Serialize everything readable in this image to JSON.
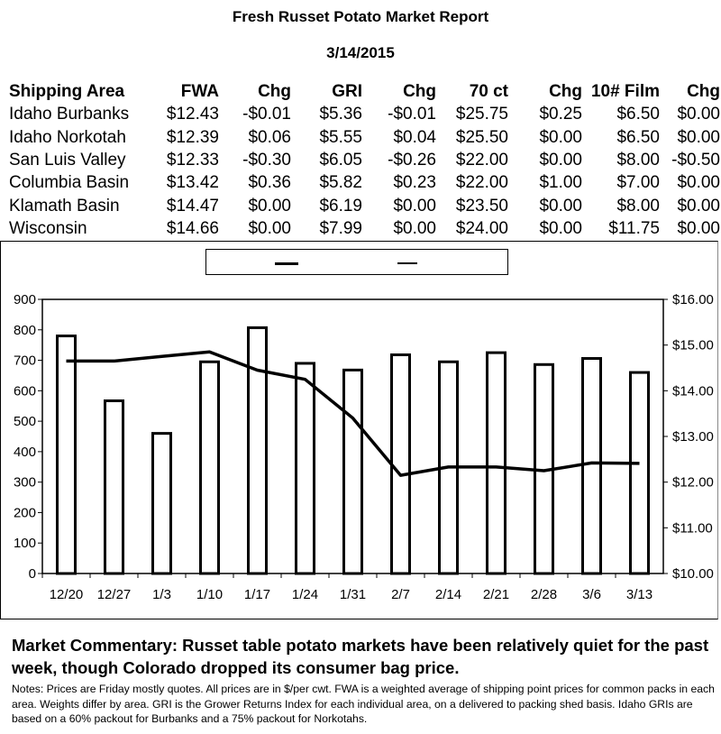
{
  "report": {
    "title": "Fresh Russet Potato Market Report",
    "date": "3/14/2015"
  },
  "table": {
    "headers": [
      "Shipping Area",
      "FWA",
      "Chg",
      "GRI",
      "Chg",
      "70 ct",
      "Chg",
      "10# Film",
      "Chg"
    ],
    "rows": [
      [
        "Idaho Burbanks",
        "$12.43",
        "-$0.01",
        "$5.36",
        "-$0.01",
        "$25.75",
        "$0.25",
        "$6.50",
        "$0.00"
      ],
      [
        "Idaho Norkotah",
        "$12.39",
        "$0.06",
        "$5.55",
        "$0.04",
        "$25.50",
        "$0.00",
        "$6.50",
        "$0.00"
      ],
      [
        "San Luis Valley",
        "$12.33",
        "-$0.30",
        "$6.05",
        "-$0.26",
        "$22.00",
        "$0.00",
        "$8.00",
        "-$0.50"
      ],
      [
        "Columbia Basin",
        "$13.42",
        "$0.36",
        "$5.82",
        "$0.23",
        "$22.00",
        "$1.00",
        "$7.00",
        "$0.00"
      ],
      [
        "Klamath Basin",
        "$14.47",
        "$0.00",
        "$6.19",
        "$0.00",
        "$23.50",
        "$0.00",
        "$8.00",
        "$0.00"
      ],
      [
        "Wisconsin",
        "$14.66",
        "$0.00",
        "$7.99",
        "$0.00",
        "$24.00",
        "$0.00",
        "$11.75",
        "$0.00"
      ]
    ]
  },
  "chart_data": {
    "type": "bar",
    "categories": [
      "12/20",
      "12/27",
      "1/3",
      "1/10",
      "1/17",
      "1/24",
      "1/31",
      "2/7",
      "2/14",
      "2/21",
      "2/28",
      "3/6",
      "3/13"
    ],
    "series": [
      {
        "type": "bar",
        "axis": "left",
        "values": [
          780,
          567,
          460,
          695,
          807,
          690,
          668,
          718,
          695,
          725,
          686,
          706,
          660
        ]
      },
      {
        "type": "line",
        "axis": "right",
        "values": [
          14.65,
          14.65,
          14.75,
          14.85,
          14.45,
          14.25,
          13.4,
          12.15,
          12.33,
          12.33,
          12.25,
          12.42,
          12.41
        ]
      }
    ],
    "y_left": {
      "min": 0,
      "max": 900,
      "ticks": [
        "0",
        "100",
        "200",
        "300",
        "400",
        "500",
        "600",
        "700",
        "800",
        "900"
      ]
    },
    "y_right": {
      "min": 10,
      "max": 16,
      "ticks": [
        "$10.00",
        "$11.00",
        "$12.00",
        "$13.00",
        "$14.00",
        "$15.00",
        "$16.00"
      ]
    },
    "grid": false,
    "legend": "top"
  },
  "commentary": "Market Commentary: Russet table potato markets have been relatively quiet for the past week, though Colorado dropped its consumer bag price.",
  "notes": "Notes: Prices are Friday mostly quotes. All prices are in $/per cwt. FWA is a weighted average of shipping point prices for  common packs in each area. Weights differ by area. GRI is the Grower Returns Index for each individual area, on a delivered to packing shed basis. Idaho GRIs are based on a 60% packout for Burbanks and a 75% packout for Norkotahs."
}
